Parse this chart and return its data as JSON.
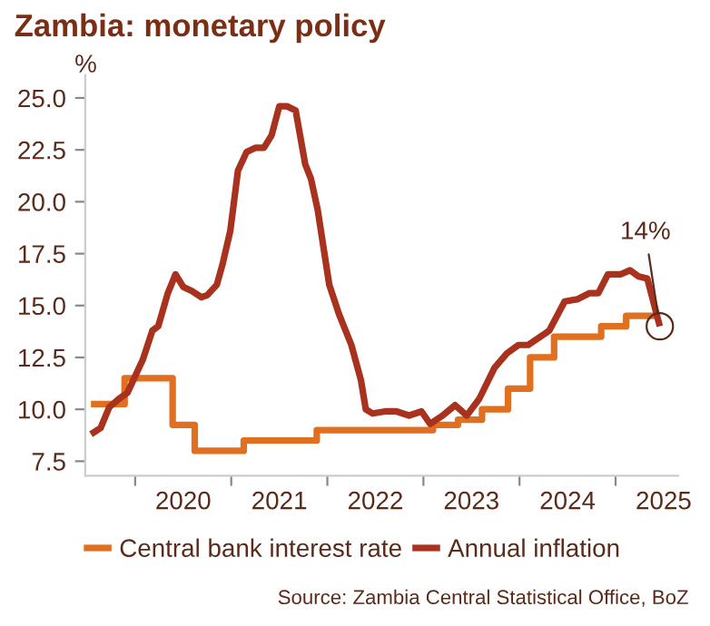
{
  "chart_data": {
    "type": "line",
    "title": "Zambia: monetary policy",
    "ylabel": "%",
    "annotations": [
      {
        "text": "14%",
        "x": 2025.46,
        "y": 14.0
      },
      "Source: Zambia Central Statistical Office, BoZ"
    ],
    "xlim": [
      2019.48,
      2025.65
    ],
    "ylim": [
      6.8,
      26.1
    ],
    "xticks": [
      {
        "value": 2020,
        "label": null
      },
      {
        "value": 2021,
        "label": null
      },
      {
        "value": 2022,
        "label": null
      },
      {
        "value": 2023,
        "label": null
      },
      {
        "value": 2024,
        "label": null
      },
      {
        "value": 2025,
        "label": null
      },
      {
        "value": 2020.5,
        "label": "2020"
      },
      {
        "value": 2021.5,
        "label": "2021"
      },
      {
        "value": 2022.5,
        "label": "2022"
      },
      {
        "value": 2023.5,
        "label": "2023"
      },
      {
        "value": 2024.5,
        "label": "2024"
      },
      {
        "value": 2025.5,
        "label": "2025"
      }
    ],
    "yticks": [
      {
        "value": 7.5,
        "label": "7.5"
      },
      {
        "value": 10,
        "label": "10.0"
      },
      {
        "value": 12.5,
        "label": "12.5"
      },
      {
        "value": 15,
        "label": "15.0"
      },
      {
        "value": 17.5,
        "label": "17.5"
      },
      {
        "value": 20,
        "label": "20.0"
      },
      {
        "value": 22.5,
        "label": "22.5"
      },
      {
        "value": 25,
        "label": "25.0"
      }
    ],
    "grid": false,
    "legend": "bottom",
    "line_style": "solid",
    "marker": "none",
    "series": [
      {
        "name": "Central bank interest rate",
        "type": "step",
        "color": "#e07020",
        "x": [
          2019.54,
          2019.89,
          2020.39,
          2020.62,
          2021.13,
          2021.89,
          2023.1,
          2023.36,
          2023.61,
          2023.88,
          2024.11,
          2024.36,
          2024.85,
          2025.11,
          2025.46
        ],
        "values": [
          10.25,
          11.5,
          9.25,
          8.0,
          8.5,
          9.0,
          9.25,
          9.5,
          10.0,
          11.0,
          12.5,
          13.5,
          14.0,
          14.5,
          14.5
        ]
      },
      {
        "name": "Annual inflation",
        "color": "#a8321e",
        "x": [
          2019.54,
          2019.64,
          2019.73,
          2019.83,
          2019.92,
          2020.02,
          2020.08,
          2020.18,
          2020.24,
          2020.34,
          2020.42,
          2020.5,
          2020.59,
          2020.69,
          2020.75,
          2020.85,
          2020.91,
          2020.99,
          2021.07,
          2021.16,
          2021.25,
          2021.34,
          2021.42,
          2021.5,
          2021.58,
          2021.67,
          2021.77,
          2021.83,
          2021.9,
          2022.02,
          2022.12,
          2022.25,
          2022.35,
          2022.4,
          2022.47,
          2022.6,
          2022.72,
          2022.85,
          2022.98,
          2023.07,
          2023.2,
          2023.33,
          2023.45,
          2023.58,
          2023.74,
          2023.87,
          2023.99,
          2024.09,
          2024.25,
          2024.31,
          2024.47,
          2024.6,
          2024.73,
          2024.82,
          2024.92,
          2025.05,
          2025.15,
          2025.24,
          2025.33,
          2025.46
        ],
        "values": [
          8.8,
          9.1,
          10.1,
          10.5,
          10.8,
          11.8,
          12.4,
          13.8,
          14.0,
          15.6,
          16.5,
          15.9,
          15.7,
          15.4,
          15.5,
          16.0,
          17.0,
          18.6,
          21.5,
          22.4,
          22.6,
          22.6,
          23.2,
          24.6,
          24.6,
          24.4,
          21.8,
          21.1,
          19.6,
          16.0,
          14.6,
          13.1,
          11.4,
          10.0,
          9.8,
          9.9,
          9.9,
          9.7,
          9.9,
          9.3,
          9.7,
          10.2,
          9.7,
          10.5,
          12.0,
          12.7,
          13.1,
          13.1,
          13.6,
          13.8,
          15.2,
          15.3,
          15.6,
          15.6,
          16.5,
          16.5,
          16.7,
          16.4,
          16.3,
          14.0
        ]
      }
    ]
  }
}
